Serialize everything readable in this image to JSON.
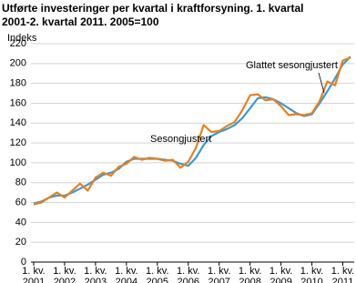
{
  "chart_data": {
    "type": "line",
    "title": "Utførte investeringer per kvartal i kraftforsyning. 1. kvartal 2001-2. kvartal 2011. 2005=100",
    "y_label": "Indeks",
    "categories": [
      "1. kv. 2001",
      null,
      null,
      null,
      "1. kv. 2002",
      null,
      null,
      null,
      "1. kv. 2003",
      null,
      null,
      null,
      "1. kv. 2004",
      null,
      null,
      null,
      "1. kv. 2005",
      null,
      null,
      null,
      "1. kv. 2006",
      null,
      null,
      null,
      "1. kv. 2007",
      null,
      null,
      null,
      "1. kv. 2008",
      null,
      null,
      null,
      "1. kv. 2009",
      null,
      null,
      null,
      "1. kv. 2010",
      null,
      null,
      null,
      "1. kv. 2011",
      null
    ],
    "series": [
      {
        "name": "Sesongjustert",
        "color": "#e8801f",
        "values": [
          58,
          60,
          65,
          70,
          65,
          72,
          79,
          72,
          85,
          90,
          87,
          96,
          99,
          106,
          103,
          105,
          104,
          102,
          103,
          95,
          101,
          115,
          138,
          131,
          132,
          137,
          141,
          153,
          168,
          169,
          163,
          164,
          157,
          148,
          149,
          148,
          150,
          162,
          182,
          178,
          203,
          206
        ]
      },
      {
        "name": "Glattet sesongjustert",
        "color": "#3a9ad6",
        "values": [
          59,
          61,
          65,
          67,
          67,
          70,
          74,
          78,
          83,
          88,
          90,
          94,
          101,
          104,
          104,
          104,
          104,
          103,
          102,
          99,
          97,
          105,
          118,
          127,
          131,
          134,
          138,
          145,
          155,
          165,
          166,
          164,
          160,
          155,
          150,
          147,
          149,
          160,
          172,
          185,
          199,
          207
        ]
      }
    ],
    "ylim": [
      0,
      220
    ],
    "yticks": [
      0,
      20,
      40,
      60,
      80,
      100,
      120,
      140,
      160,
      180,
      200,
      220
    ],
    "grid": true
  }
}
